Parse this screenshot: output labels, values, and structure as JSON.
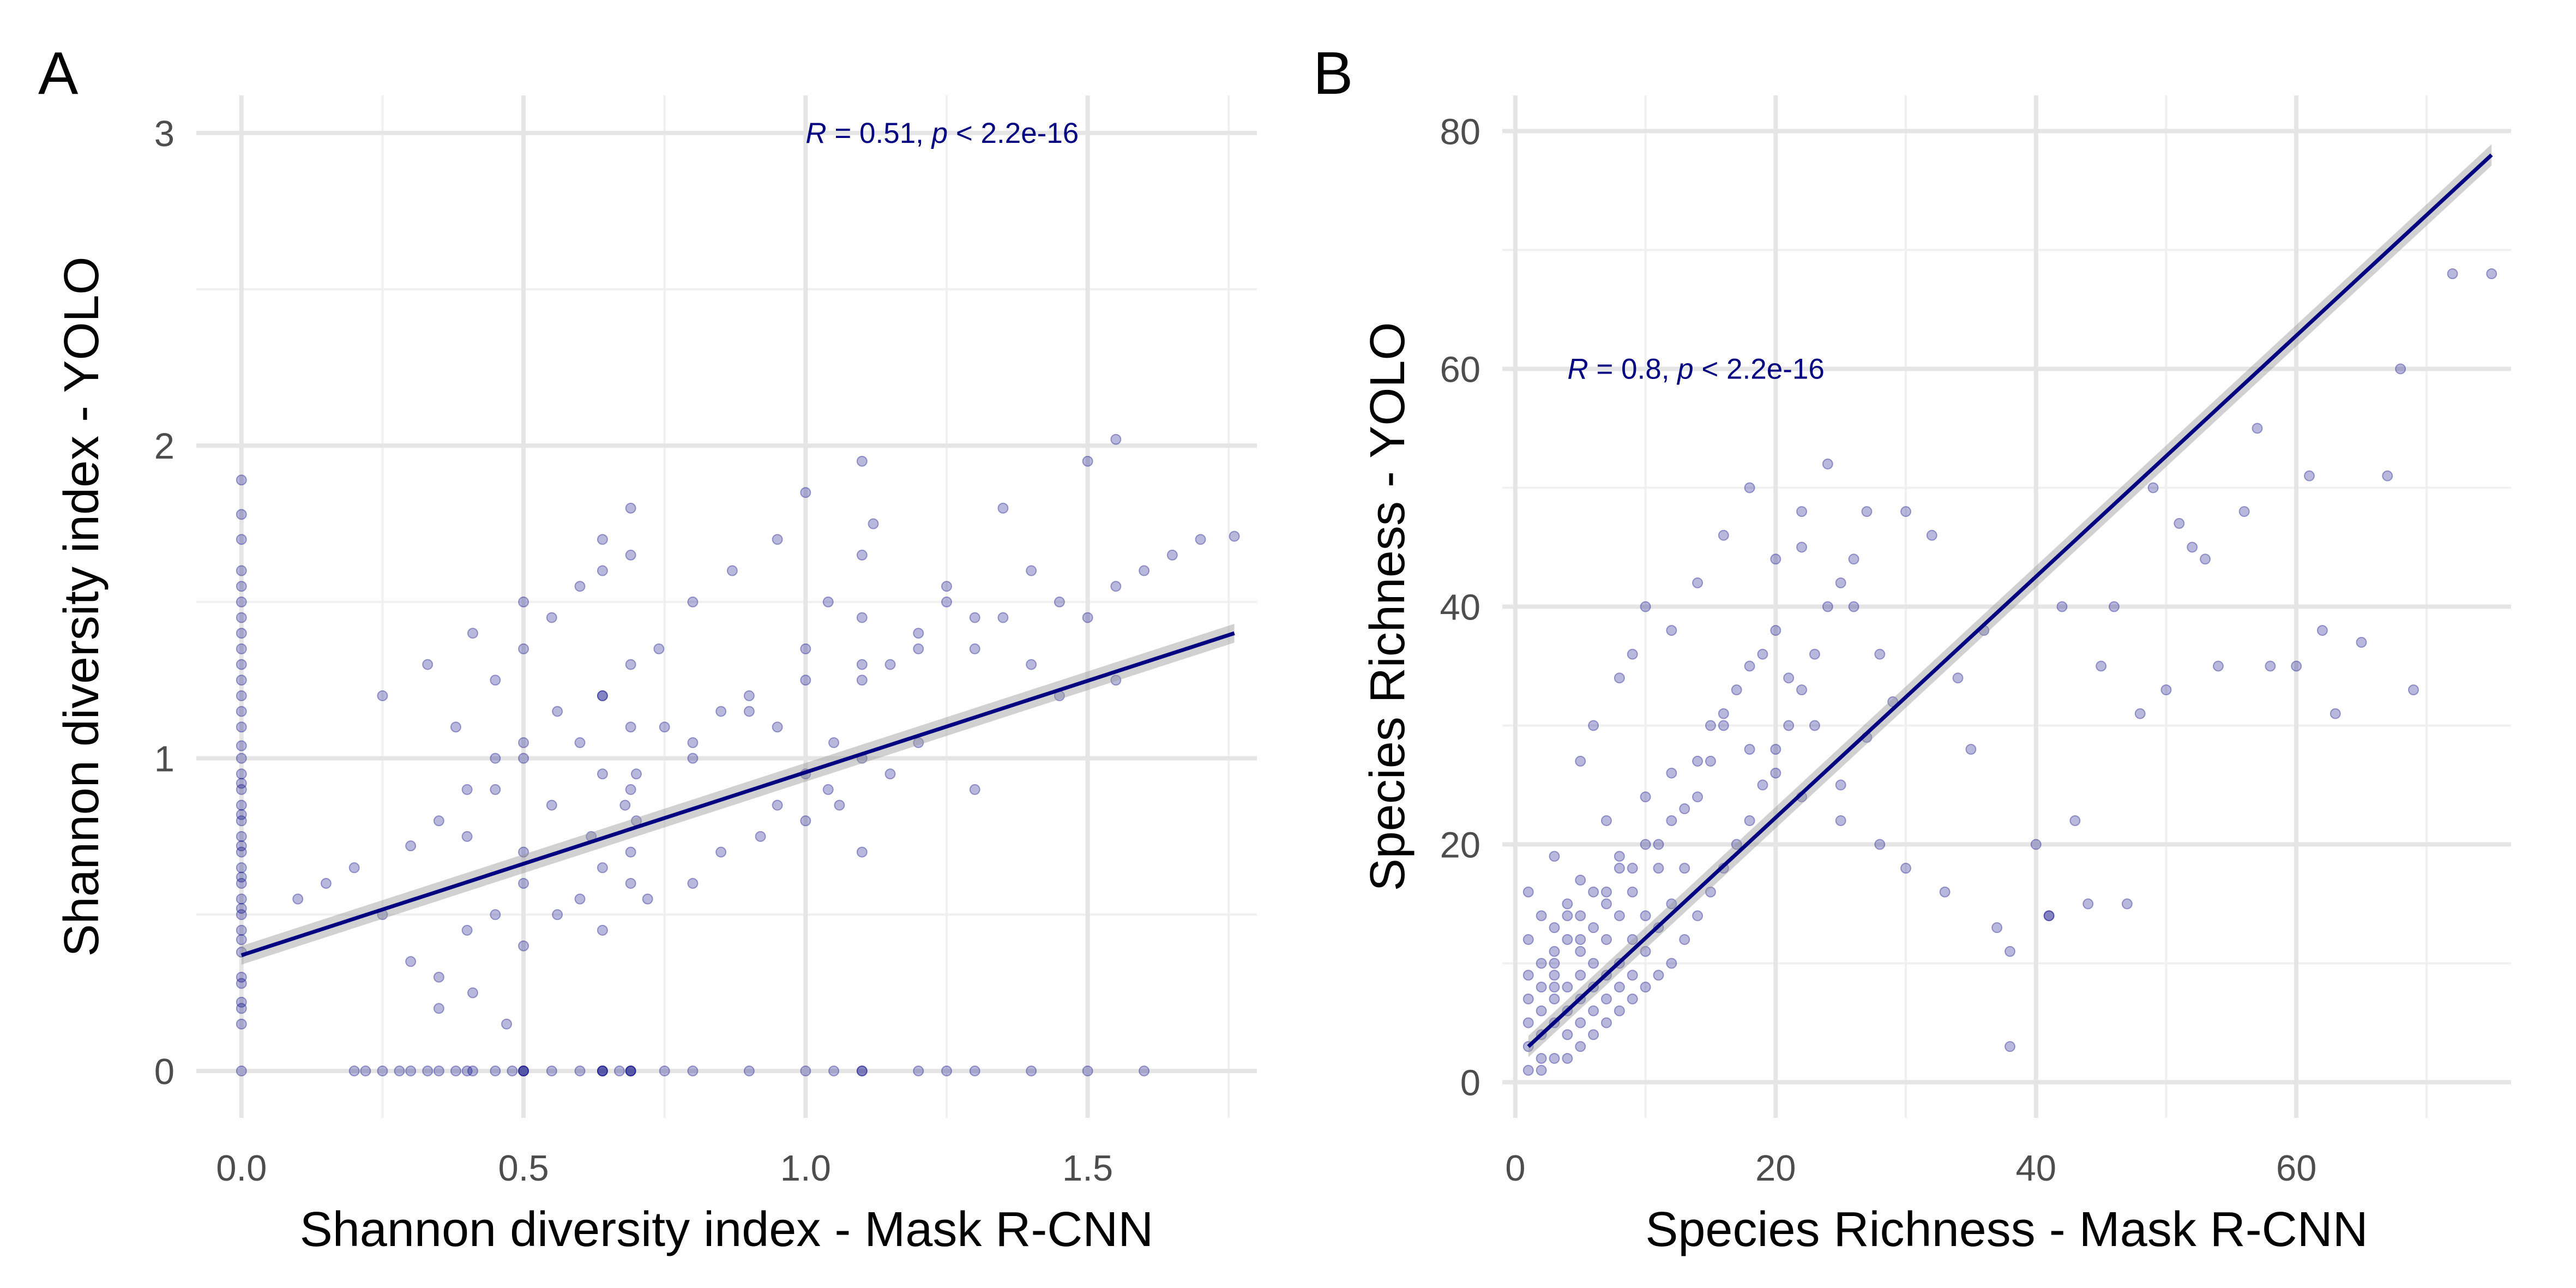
{
  "panels": [
    {
      "label": "A"
    },
    {
      "label": "B"
    }
  ],
  "chart_data": [
    {
      "type": "scatter",
      "panel": "A",
      "xlabel": "Shannon diversity index - Mask R-CNN",
      "ylabel": "Shannon diversity index - YOLO",
      "xlim": [
        -0.08,
        1.8
      ],
      "ylim": [
        -0.15,
        3.12
      ],
      "x_ticks": [
        0.0,
        0.5,
        1.0,
        1.5
      ],
      "x_tick_labels": [
        "0.0",
        "0.5",
        "1.0",
        "1.5"
      ],
      "y_ticks": [
        0,
        1,
        2,
        3
      ],
      "y_tick_labels": [
        "0",
        "1",
        "2",
        "3"
      ],
      "grid": true,
      "annotation": {
        "r_label": "R",
        "r_text": " = 0.51, ",
        "p_label": "p",
        "p_text": " < 2.2e-16",
        "x": 1.0,
        "y": 3.0
      },
      "regression": {
        "x": [
          0.0,
          1.76
        ],
        "y": [
          0.37,
          1.4
        ],
        "ci_halfwidth": 0.03
      },
      "point_color": "#000080",
      "line_color": "#000080",
      "series": [
        {
          "x": [
            0.0,
            0.0,
            0.0,
            0.0,
            0.0,
            0.0,
            0.0,
            0.0,
            0.0,
            0.0,
            0.0,
            0.0,
            0.0,
            0.0,
            0.0,
            0.0,
            0.0,
            0.0,
            0.0,
            0.0,
            0.0,
            0.0,
            0.0,
            0.0,
            0.0,
            0.0,
            0.0,
            0.0,
            0.0,
            0.0,
            0.0,
            0.0,
            0.0,
            0.0,
            0.0,
            0.0,
            0.0,
            0.0,
            0.0,
            0.0,
            0.2,
            0.22,
            0.25,
            0.28,
            0.3,
            0.33,
            0.35,
            0.38,
            0.4,
            0.41,
            0.45,
            0.48,
            0.5,
            0.5,
            0.5,
            0.55,
            0.6,
            0.64,
            0.64,
            0.64,
            0.67,
            0.69,
            0.69,
            0.69,
            0.75,
            0.8,
            0.9,
            1.0,
            1.05,
            1.1,
            1.1,
            1.2,
            1.25,
            1.3,
            1.4,
            1.5,
            1.6,
            0.1,
            0.15,
            0.2,
            0.25,
            0.3,
            0.35,
            0.4,
            0.45,
            0.5,
            0.5,
            0.55,
            0.6,
            0.64,
            0.64,
            0.69,
            0.69,
            0.7,
            0.75,
            0.8,
            0.85,
            0.9,
            0.95,
            1.0,
            1.0,
            1.05,
            1.1,
            1.1,
            1.15,
            1.2,
            1.25,
            1.3,
            1.35,
            1.4,
            1.45,
            1.5,
            1.55,
            1.6,
            1.65,
            1.7,
            1.76,
            0.3,
            0.35,
            0.4,
            0.41,
            0.45,
            0.5,
            0.5,
            0.56,
            0.6,
            0.64,
            0.64,
            0.69,
            0.69,
            0.72,
            0.8,
            0.85,
            0.92,
            0.95,
            1.0,
            1.04,
            1.06,
            1.1,
            1.1,
            1.15,
            1.2,
            1.3,
            1.45,
            0.25,
            0.33,
            0.38,
            0.41,
            0.45,
            0.5,
            0.5,
            0.55,
            0.6,
            0.64,
            0.64,
            0.69,
            0.69,
            0.74,
            0.8,
            0.87,
            0.95,
            1.0,
            1.04,
            1.1,
            1.1,
            1.12,
            1.25,
            1.35,
            1.5,
            1.55,
            0.4,
            0.45,
            0.5,
            0.56,
            0.64,
            0.69,
            0.7,
            0.8,
            0.9,
            1.0,
            1.1,
            1.2,
            1.3,
            1.4,
            1.55,
            0.62,
            0.68,
            0.35,
            0.47
          ],
          "y": [
            0.0,
            0.15,
            0.22,
            0.3,
            0.38,
            0.45,
            0.5,
            0.55,
            0.6,
            0.65,
            0.7,
            0.75,
            0.8,
            0.85,
            0.9,
            0.95,
            1.0,
            1.04,
            1.1,
            1.15,
            1.2,
            1.25,
            1.3,
            1.35,
            1.4,
            1.45,
            1.5,
            1.55,
            1.6,
            1.7,
            1.78,
            1.89,
            0.2,
            0.28,
            0.42,
            0.52,
            0.62,
            0.72,
            0.82,
            0.92,
            0.0,
            0.0,
            0.0,
            0.0,
            0.0,
            0.0,
            0.0,
            0.0,
            0.0,
            0.0,
            0.0,
            0.0,
            0.0,
            0.0,
            0.0,
            0.0,
            0.0,
            0.0,
            0.0,
            0.0,
            0.0,
            0.0,
            0.0,
            0.0,
            0.0,
            0.0,
            0.0,
            0.0,
            0.0,
            0.0,
            0.0,
            0.0,
            0.0,
            0.0,
            0.0,
            0.0,
            0.0,
            0.55,
            0.6,
            0.65,
            0.5,
            0.72,
            0.8,
            0.75,
            0.9,
            0.7,
            1.0,
            0.85,
            1.05,
            0.95,
            1.2,
            0.9,
            1.3,
            0.8,
            1.1,
            1.0,
            1.15,
            1.2,
            1.1,
            0.95,
            1.35,
            1.05,
            1.25,
            1.45,
            1.3,
            1.4,
            1.5,
            1.35,
            1.45,
            1.6,
            1.5,
            1.45,
            1.55,
            1.6,
            1.65,
            1.7,
            1.71,
            0.35,
            0.3,
            0.45,
            0.25,
            0.5,
            0.4,
            0.6,
            0.5,
            0.55,
            0.45,
            0.65,
            0.6,
            0.7,
            0.55,
            0.6,
            0.7,
            0.75,
            0.85,
            0.8,
            0.9,
            0.85,
            0.7,
            1.0,
            0.95,
            1.05,
            0.9,
            1.2,
            1.2,
            1.3,
            1.1,
            1.4,
            1.25,
            1.35,
            1.5,
            1.45,
            1.55,
            1.6,
            1.7,
            1.65,
            1.8,
            1.35,
            1.5,
            1.6,
            1.7,
            1.85,
            1.5,
            1.65,
            1.95,
            1.75,
            1.55,
            1.8,
            1.95,
            2.02,
            0.9,
            1.0,
            1.05,
            1.15,
            1.2,
            1.1,
            0.95,
            1.05,
            1.15,
            1.25,
            1.3,
            1.35,
            1.45,
            1.3,
            1.25,
            0.75,
            0.85,
            0.2,
            0.15
          ]
        }
      ]
    },
    {
      "type": "scatter",
      "panel": "B",
      "xlabel": "Species Richness - Mask R-CNN",
      "ylabel": "Species Richness - YOLO",
      "xlim": [
        -1,
        76.5
      ],
      "ylim": [
        -3,
        83
      ],
      "x_ticks": [
        0,
        20,
        40,
        60
      ],
      "x_tick_labels": [
        "0",
        "20",
        "40",
        "60"
      ],
      "y_ticks": [
        0,
        20,
        40,
        60,
        80
      ],
      "y_tick_labels": [
        "0",
        "20",
        "40",
        "60",
        "80"
      ],
      "grid": true,
      "annotation": {
        "r_label": "R",
        "r_text": " = 0.8, ",
        "p_label": "p",
        "p_text": " < 2.2e-16",
        "x": 4,
        "y": 60
      },
      "regression": {
        "x": [
          1,
          75
        ],
        "y": [
          3.0,
          78.0
        ],
        "ci_halfwidth": 0.9
      },
      "point_color": "#000080",
      "line_color": "#000080",
      "series": [
        {
          "x": [
            1,
            1,
            1,
            1,
            1,
            1,
            1,
            2,
            2,
            2,
            2,
            2,
            2,
            3,
            3,
            3,
            3,
            3,
            3,
            3,
            4,
            4,
            4,
            4,
            4,
            4,
            5,
            5,
            5,
            5,
            5,
            5,
            5,
            6,
            6,
            6,
            6,
            6,
            7,
            7,
            7,
            7,
            7,
            8,
            8,
            8,
            8,
            8,
            9,
            9,
            9,
            9,
            10,
            10,
            10,
            10,
            11,
            11,
            11,
            12,
            12,
            12,
            13,
            13,
            14,
            14,
            15,
            15,
            16,
            16,
            17,
            18,
            18,
            19,
            20,
            20,
            21,
            22,
            22,
            23,
            24,
            25,
            26,
            27,
            5,
            6,
            7,
            8,
            9,
            10,
            12,
            14,
            16,
            18,
            20,
            22,
            24,
            26,
            28,
            30,
            32,
            34,
            36,
            37,
            38,
            40,
            41,
            42,
            44,
            45,
            47,
            48,
            50,
            51,
            52,
            54,
            56,
            58,
            60,
            62,
            63,
            65,
            68,
            69,
            72,
            75,
            3,
            4,
            6,
            8,
            10,
            12,
            15,
            17,
            19,
            21,
            23,
            25,
            28,
            30,
            33,
            35,
            38,
            41,
            43,
            46,
            49,
            53,
            57,
            61,
            67,
            2,
            3,
            5,
            7,
            9,
            11,
            13,
            14,
            16,
            18,
            20,
            22,
            25,
            27,
            29
          ],
          "y": [
            1,
            3,
            5,
            7,
            9,
            12,
            16,
            1,
            4,
            6,
            8,
            10,
            14,
            2,
            5,
            7,
            9,
            11,
            13,
            19,
            2,
            4,
            6,
            8,
            12,
            15,
            3,
            5,
            7,
            9,
            11,
            14,
            17,
            4,
            6,
            8,
            10,
            13,
            5,
            7,
            9,
            12,
            16,
            6,
            8,
            10,
            14,
            19,
            7,
            9,
            12,
            16,
            8,
            11,
            14,
            20,
            9,
            13,
            18,
            10,
            15,
            22,
            12,
            18,
            14,
            24,
            16,
            27,
            18,
            30,
            20,
            22,
            35,
            25,
            28,
            38,
            30,
            33,
            45,
            36,
            40,
            42,
            44,
            48,
            27,
            30,
            22,
            34,
            36,
            40,
            38,
            42,
            46,
            50,
            44,
            48,
            52,
            40,
            36,
            48,
            46,
            34,
            38,
            13,
            3,
            20,
            14,
            40,
            15,
            35,
            15,
            31,
            33,
            47,
            45,
            35,
            48,
            35,
            35,
            38,
            31,
            37,
            60,
            33,
            68,
            68,
            10,
            14,
            16,
            18,
            24,
            26,
            30,
            33,
            36,
            34,
            30,
            25,
            20,
            18,
            16,
            28,
            11,
            14,
            22,
            40,
            50,
            44,
            55,
            51,
            51,
            2,
            8,
            12,
            15,
            18,
            20,
            23,
            27,
            31,
            28,
            26,
            24,
            22,
            29,
            32
          ]
        }
      ]
    }
  ]
}
